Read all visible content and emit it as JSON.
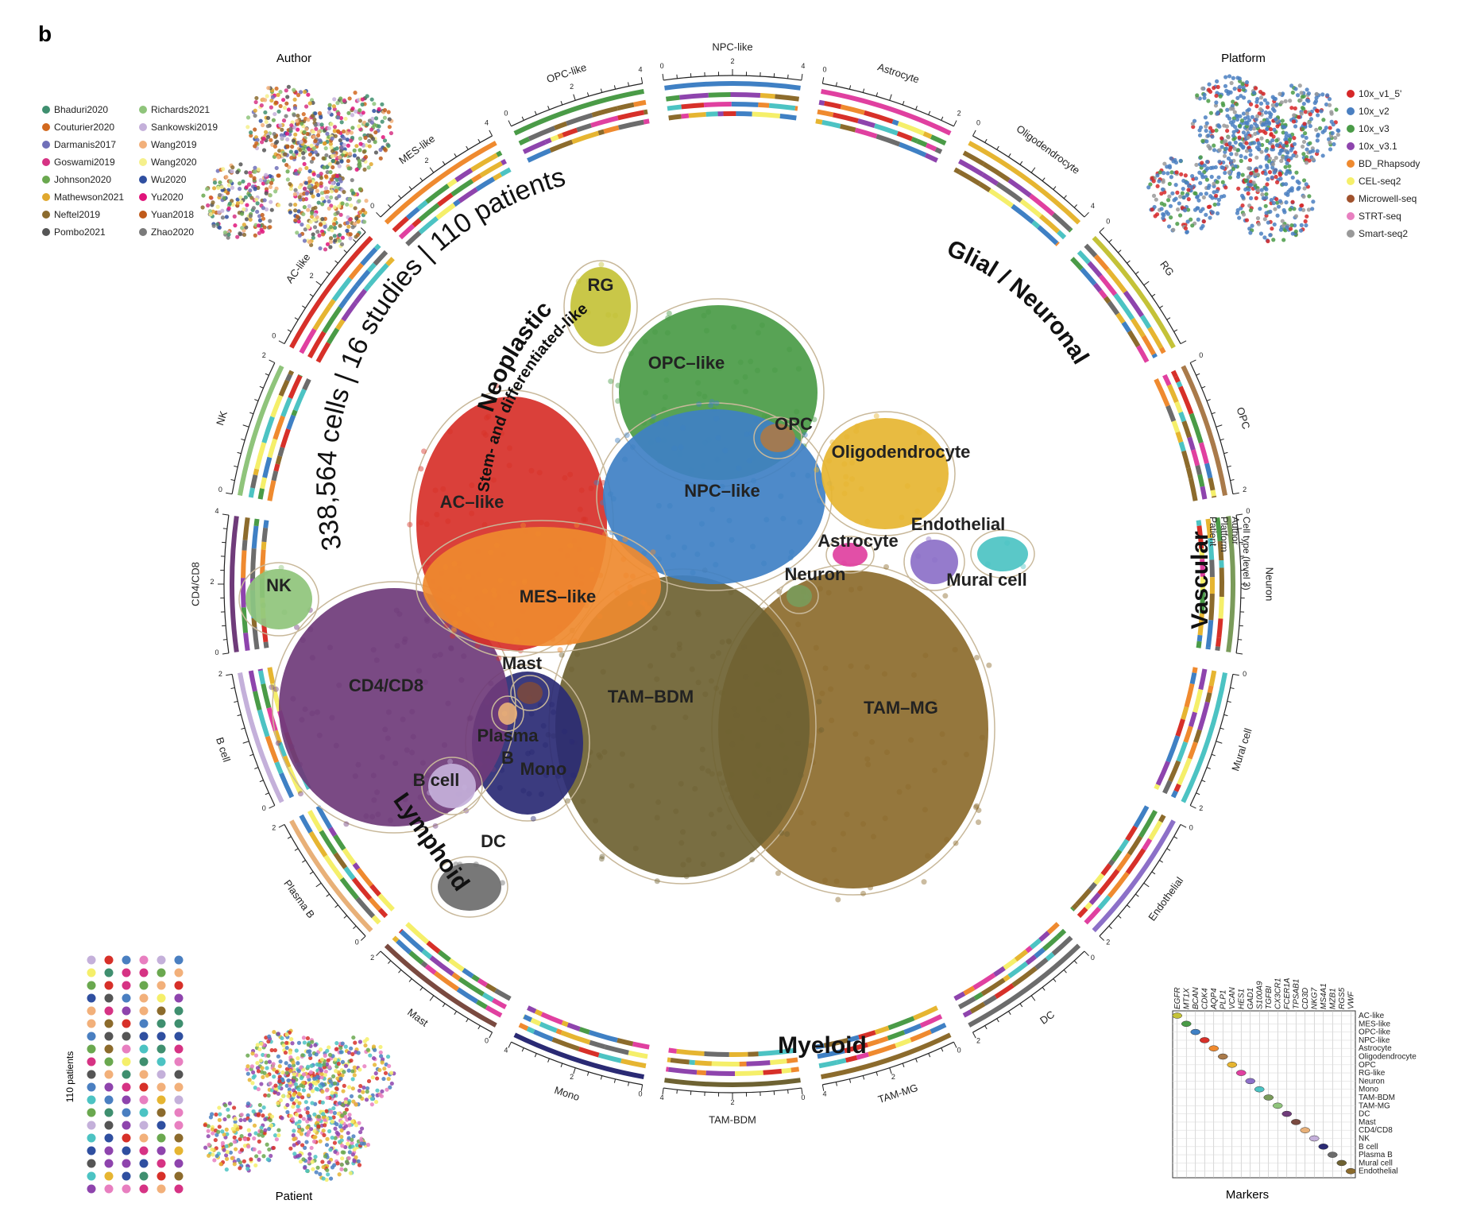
{
  "panel_letter": "b",
  "summary_text": "338,564 cells  |  16 studies  |  110 patients",
  "colors": {
    "RG": "#c4c238",
    "OPC-like": "#4a9b47",
    "NPC-like": "#3f80c4",
    "AC-like": "#d73029",
    "MES-like": "#ef8a2f",
    "OPC": "#a97a4a",
    "Oligodendrocyte": "#e6b531",
    "Astrocyte": "#e040a0",
    "Endothelial": "#8c70c8",
    "Mural cell": "#4cc3c3",
    "Neuron": "#7a9b5a",
    "NK": "#8fc47b",
    "CD4/CD8": "#6f3b7a",
    "Mast": "#7a4a40",
    "Plasma B": "#e8b078",
    "B cell": "#c4b0da",
    "Mono": "#2a2a74",
    "DC": "#6c6c6c",
    "TAM-BDM": "#6e6232",
    "TAM-MG": "#8c6b2c"
  },
  "group_labels": {
    "neoplastic": "Neoplastic",
    "stem": "Stem- and differentiated-like",
    "glial": "Glial / Neuronal",
    "vascular": "Vascular",
    "myeloid": "Myeloid",
    "lymphoid": "Lymphoid"
  },
  "ring_key": [
    "Cell type (level 3)",
    "Author",
    "Platform",
    "Patient"
  ],
  "author_panel": {
    "title": "Author",
    "legend": [
      {
        "name": "Bhaduri2020",
        "color": "#3f8f6f"
      },
      {
        "name": "Couturier2020",
        "color": "#d2691e"
      },
      {
        "name": "Darmanis2017",
        "color": "#7070b8"
      },
      {
        "name": "Goswami2019",
        "color": "#d63384"
      },
      {
        "name": "Johnson2020",
        "color": "#6aa84f"
      },
      {
        "name": "Mathewson2021",
        "color": "#e0a82e"
      },
      {
        "name": "Neftel2019",
        "color": "#8b6b2e"
      },
      {
        "name": "Pombo2021",
        "color": "#555555"
      },
      {
        "name": "Richards2021",
        "color": "#8fc47b"
      },
      {
        "name": "Sankowski2019",
        "color": "#c4b0da"
      },
      {
        "name": "Wang2019",
        "color": "#f2b07a"
      },
      {
        "name": "Wang2020",
        "color": "#f5f08c"
      },
      {
        "name": "Wu2020",
        "color": "#2f4fa0"
      },
      {
        "name": "Yu2020",
        "color": "#e0147a"
      },
      {
        "name": "Yuan2018",
        "color": "#c05a1a"
      },
      {
        "name": "Zhao2020",
        "color": "#7a7a7a"
      }
    ]
  },
  "platform_panel": {
    "title": "Platform",
    "legend": [
      {
        "name": "10x_v1_5'",
        "color": "#d62728"
      },
      {
        "name": "10x_v2",
        "color": "#4a7fc1"
      },
      {
        "name": "10x_v3",
        "color": "#4a9b47"
      },
      {
        "name": "10x_v3.1",
        "color": "#8e44ad"
      },
      {
        "name": "BD_Rhapsody",
        "color": "#ef8a2f"
      },
      {
        "name": "CEL-seq2",
        "color": "#f5ef6a"
      },
      {
        "name": "Microwell-seq",
        "color": "#a0522d"
      },
      {
        "name": "STRT-seq",
        "color": "#e87fc0"
      },
      {
        "name": "Smart-seq2",
        "color": "#999999"
      }
    ]
  },
  "patient_panel": {
    "title": "Patient",
    "side_label": "110 patients"
  },
  "markers_panel": {
    "title": "Markers",
    "genes": [
      "EGFR",
      "MT1X",
      "BCAN",
      "CDK4",
      "AQP4",
      "PLP1",
      "VCAN",
      "HES1",
      "GAD1",
      "S100A9",
      "TGFBI",
      "CX3CR1",
      "FCER1A",
      "TPSAB1",
      "CD3D",
      "NKG7",
      "MS4A1",
      "MZB1",
      "RGS5",
      "VWF"
    ],
    "cell_types": [
      "AC-like",
      "MES-like",
      "OPC-like",
      "NPC-like",
      "Astrocyte",
      "Oligodendrocyte",
      "OPC",
      "RG-like",
      "Neuron",
      "Mono",
      "TAM-BDM",
      "TAM-MG",
      "DC",
      "Mast",
      "CD4/CD8",
      "NK",
      "B cell",
      "Plasma B",
      "Mural cell",
      "Endothelial"
    ]
  },
  "chart_data": {
    "type": "scatter",
    "title": "",
    "clusters": [
      {
        "name": "RG",
        "label": "RG",
        "cx": 2.4,
        "cy": 9.2
      },
      {
        "name": "OPC-like",
        "label": "OPC–like",
        "cx": 3.6,
        "cy": 7.8
      },
      {
        "name": "OPC",
        "label": "OPC",
        "cx": 5.1,
        "cy": 6.7
      },
      {
        "name": "Oligodendrocyte",
        "label": "Oligodendrocyte",
        "cx": 6.6,
        "cy": 6.2
      },
      {
        "name": "AC-like",
        "label": "AC–like",
        "cx": 0.6,
        "cy": 5.3
      },
      {
        "name": "NPC-like",
        "label": "NPC–like",
        "cx": 4.1,
        "cy": 5.5
      },
      {
        "name": "Endothelial",
        "label": "Endothelial",
        "cx": 7.4,
        "cy": 4.9
      },
      {
        "name": "Astrocyte",
        "label": "Astrocyte",
        "cx": 6.0,
        "cy": 4.6
      },
      {
        "name": "Neuron",
        "label": "Neuron",
        "cx": 5.4,
        "cy": 4.0
      },
      {
        "name": "Mural cell",
        "label": "Mural cell",
        "cx": 7.8,
        "cy": 3.9
      },
      {
        "name": "NK",
        "label": "NK",
        "cx": -2.1,
        "cy": 3.8
      },
      {
        "name": "MES-like",
        "label": "MES–like",
        "cx": 1.8,
        "cy": 3.6
      },
      {
        "name": "Mast",
        "label": "Mast",
        "cx": 1.3,
        "cy": 2.4
      },
      {
        "name": "CD4/CD8",
        "label": "CD4/CD8",
        "cx": -0.6,
        "cy": 2.0
      },
      {
        "name": "TAM-BDM",
        "label": "TAM–BDM",
        "cx": 3.1,
        "cy": 1.8
      },
      {
        "name": "TAM-MG",
        "label": "TAM–MG",
        "cx": 6.6,
        "cy": 1.6
      },
      {
        "name": "Plasma B",
        "label": "Plasma\nB",
        "cx": 1.1,
        "cy": 1.1
      },
      {
        "name": "B cell",
        "label": "B cell",
        "cx": 0.1,
        "cy": 0.3
      },
      {
        "name": "Mono",
        "label": "Mono",
        "cx": 1.6,
        "cy": 0.5
      },
      {
        "name": "DC",
        "label": "DC",
        "cx": 0.9,
        "cy": -0.8
      }
    ],
    "ring_segments": [
      {
        "label": "NPC-like",
        "ticks": [
          "0",
          "2",
          "4"
        ]
      },
      {
        "label": "Astrocyte",
        "ticks": [
          "0",
          "2"
        ]
      },
      {
        "label": "Oligodendrocyte",
        "ticks": [
          "0",
          "4"
        ]
      },
      {
        "label": "RG",
        "ticks": [
          "0"
        ]
      },
      {
        "label": "OPC",
        "ticks": [
          "0",
          "2"
        ]
      },
      {
        "label": "Neuron",
        "ticks": [
          "0"
        ]
      },
      {
        "label": "Mural cell",
        "ticks": [
          "0",
          "2"
        ]
      },
      {
        "label": "Endothelial",
        "ticks": [
          "0",
          "2"
        ]
      },
      {
        "label": "DC",
        "ticks": [
          "0",
          "2"
        ]
      },
      {
        "label": "TAM-MG",
        "ticks": [
          "0",
          "2",
          "4"
        ]
      },
      {
        "label": "TAM-BDM",
        "ticks": [
          "0",
          "2",
          "4"
        ]
      },
      {
        "label": "Mono",
        "ticks": [
          "0",
          "2",
          "4"
        ]
      },
      {
        "label": "Mast",
        "ticks": [
          "0",
          "2"
        ]
      },
      {
        "label": "Plasma B",
        "ticks": [
          "0",
          "2"
        ]
      },
      {
        "label": "B cell",
        "ticks": [
          "0",
          "2"
        ]
      },
      {
        "label": "CD4/CD8",
        "ticks": [
          "0",
          "2",
          "4"
        ]
      },
      {
        "label": "NK",
        "ticks": [
          "0",
          "2"
        ]
      },
      {
        "label": "AC-like",
        "ticks": [
          "0",
          "2",
          "4"
        ]
      },
      {
        "label": "MES-like",
        "ticks": [
          "0",
          "2",
          "4"
        ]
      },
      {
        "label": "OPC-like",
        "ticks": [
          "0",
          "2",
          "4"
        ]
      }
    ]
  }
}
